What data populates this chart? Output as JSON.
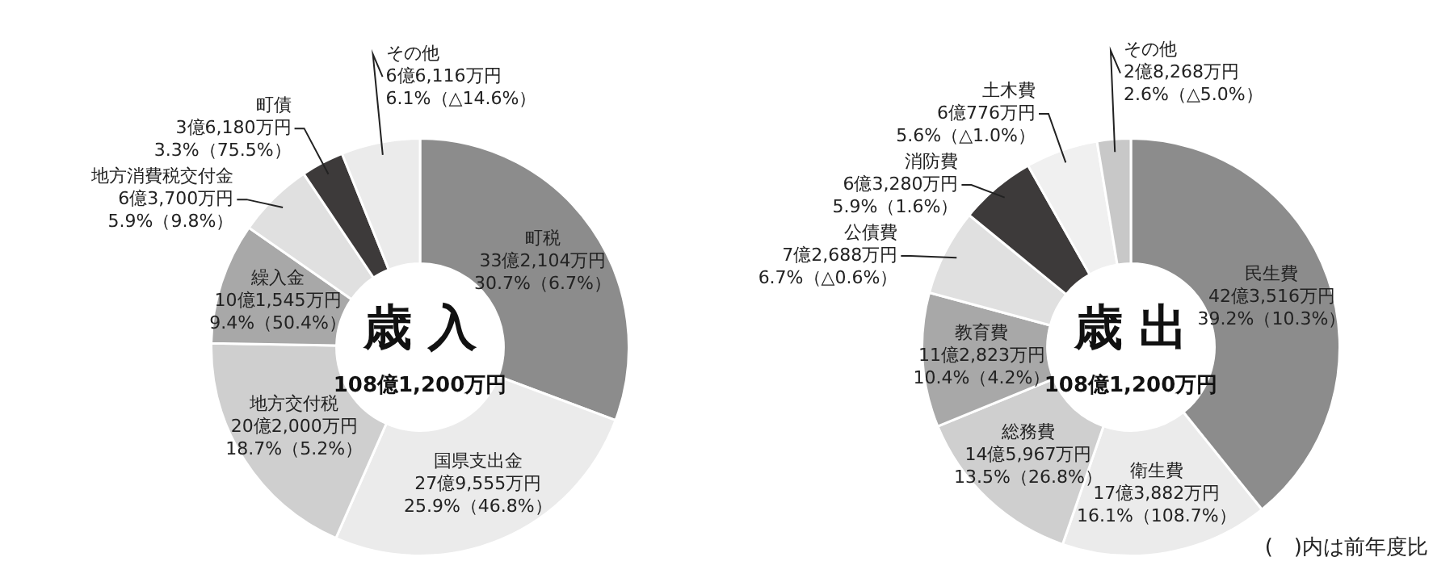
{
  "chart_data": [
    {
      "type": "donut",
      "title": "歳 入",
      "subtitle": "108億1,200万円",
      "categories": [
        "町税",
        "国県支出金",
        "地方交付税",
        "繰入金",
        "地方消費税交付金",
        "町債",
        "その他"
      ],
      "values": [
        30.7,
        25.9,
        18.7,
        9.4,
        5.9,
        3.3,
        6.1
      ],
      "colors": [
        "#8c8c8c",
        "#ebebeb",
        "#cfcfcf",
        "#a8a8a8",
        "#e0e0e0",
        "#3d3a3a",
        "#ebebeb"
      ],
      "value_labels": [
        "33億2,104万円\n30.7%（6.7%）",
        "27億9,555万円\n25.9%（46.8%）",
        "20億2,000万円\n18.7%（5.2%）",
        "10億1,545万円\n9.4%（50.4%）",
        "6億3,700万円\n5.9%（9.8%）",
        "3億6,180万円\n3.3%（75.5%）",
        "6億6,116万円\n6.1%（△14.6%）"
      ]
    },
    {
      "type": "donut",
      "title": "歳 出",
      "subtitle": "108億1,200万円",
      "categories": [
        "民生費",
        "衛生費",
        "総務費",
        "教育費",
        "公債費",
        "消防費",
        "土木費",
        "その他"
      ],
      "values": [
        39.2,
        16.1,
        13.5,
        10.4,
        6.7,
        5.9,
        5.6,
        2.6
      ],
      "colors": [
        "#8c8c8c",
        "#ebebeb",
        "#cfcfcf",
        "#a8a8a8",
        "#e0e0e0",
        "#3d3a3a",
        "#f0f0f0",
        "#c8c8c8"
      ],
      "value_labels": [
        "42億3,516万円\n39.2%（10.3%）",
        "17億3,882万円\n16.1%（108.7%）",
        "14億5,967万円\n13.5%（26.8%）",
        "11億2,823万円\n10.4%（4.2%）",
        "7億2,688万円\n6.7%（△0.6%）",
        "6億3,280万円\n5.9%（1.6%）",
        "6億776万円\n5.6%（△1.0%）",
        "2億8,268万円\n2.6%（△5.0%）"
      ],
      "annotations": [
        "(　)内は前年度比"
      ]
    }
  ]
}
